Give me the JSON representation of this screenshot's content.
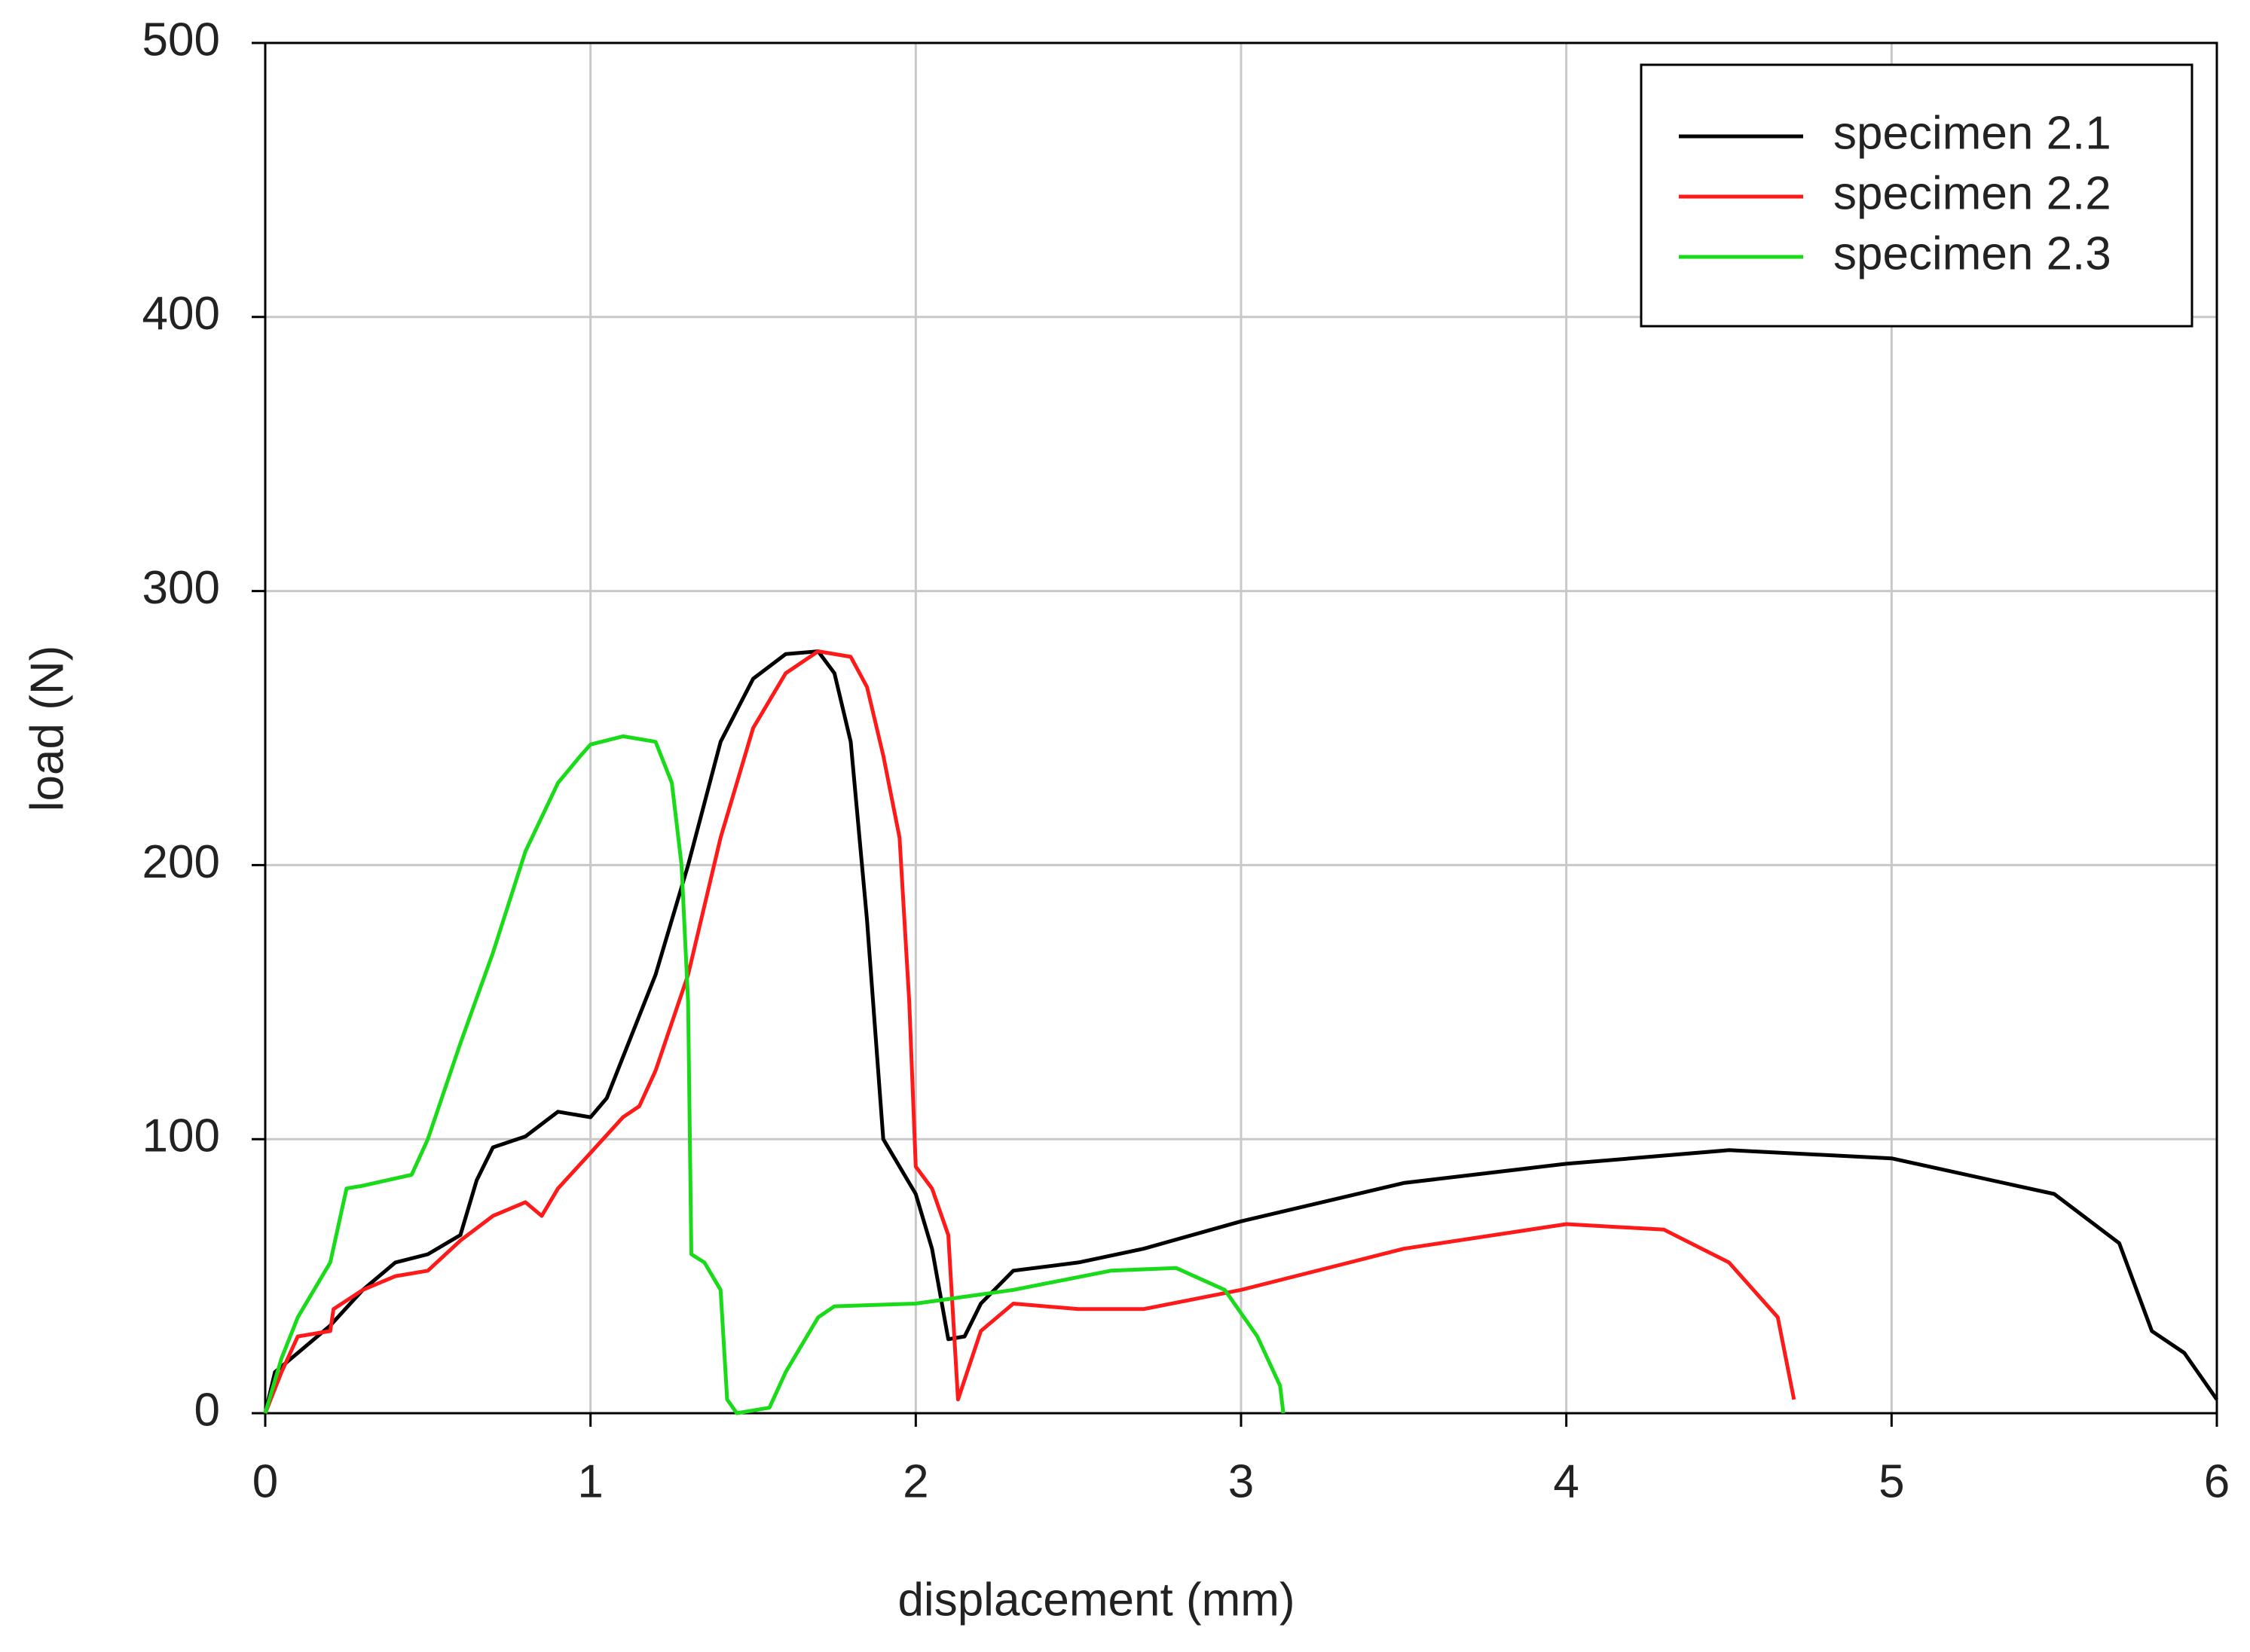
{
  "chart_data": {
    "type": "line",
    "x_label": "displacement (mm)",
    "y_label": "load (N)",
    "xlim": [
      0,
      6
    ],
    "ylim": [
      0,
      500
    ],
    "xticks": [
      0,
      1,
      2,
      3,
      4,
      5,
      6
    ],
    "yticks": [
      0,
      100,
      200,
      300,
      400,
      500
    ],
    "grid": true,
    "legend": "upper right",
    "series": [
      {
        "name": "specimen 2.1",
        "color": "#000000",
        "x": [
          0,
          0.03,
          0.1,
          0.2,
          0.3,
          0.4,
          0.5,
          0.6,
          0.65,
          0.7,
          0.8,
          0.9,
          1.0,
          1.05,
          1.1,
          1.2,
          1.3,
          1.4,
          1.5,
          1.6,
          1.7,
          1.75,
          1.8,
          1.85,
          1.9,
          1.95,
          2.0,
          2.05,
          2.1,
          2.15,
          2.2,
          2.3,
          2.5,
          2.7,
          3.0,
          3.5,
          4.0,
          4.5,
          5.0,
          5.5,
          5.7,
          5.8,
          5.9,
          6.0
        ],
        "values": [
          0,
          15,
          22,
          32,
          45,
          55,
          58,
          65,
          85,
          97,
          101,
          110,
          108,
          115,
          130,
          160,
          200,
          245,
          268,
          277,
          278,
          270,
          245,
          180,
          100,
          90,
          80,
          60,
          27,
          28,
          40,
          52,
          55,
          60,
          70,
          84,
          91,
          96,
          93,
          80,
          62,
          30,
          22,
          5
        ]
      },
      {
        "name": "specimen 2.2",
        "color": "#ff1a1a",
        "x": [
          0,
          0.05,
          0.1,
          0.2,
          0.21,
          0.3,
          0.4,
          0.5,
          0.6,
          0.7,
          0.8,
          0.85,
          0.9,
          1.0,
          1.1,
          1.15,
          1.2,
          1.3,
          1.4,
          1.5,
          1.6,
          1.7,
          1.8,
          1.85,
          1.9,
          1.95,
          1.98,
          2.0,
          2.05,
          2.1,
          2.13,
          2.2,
          2.3,
          2.5,
          2.7,
          3.0,
          3.5,
          4.0,
          4.3,
          4.5,
          4.65,
          4.7
        ],
        "values": [
          0,
          15,
          28,
          30,
          38,
          45,
          50,
          52,
          63,
          72,
          77,
          72,
          82,
          95,
          108,
          112,
          125,
          160,
          210,
          250,
          270,
          278,
          276,
          265,
          240,
          210,
          150,
          90,
          82,
          65,
          5,
          30,
          40,
          38,
          38,
          45,
          60,
          69,
          67,
          55,
          35,
          5
        ]
      },
      {
        "name": "specimen 2.3",
        "color": "#1adb1a",
        "x": [
          0,
          0.05,
          0.1,
          0.2,
          0.25,
          0.3,
          0.45,
          0.5,
          0.6,
          0.7,
          0.8,
          0.9,
          0.97,
          1.0,
          1.1,
          1.2,
          1.25,
          1.28,
          1.3,
          1.31,
          1.35,
          1.4,
          1.42,
          1.45,
          1.55,
          1.6,
          1.7,
          1.75,
          2.0,
          2.3,
          2.6,
          2.8,
          2.95,
          3.05,
          3.12,
          3.13
        ],
        "values": [
          0,
          20,
          35,
          55,
          82,
          83,
          87,
          100,
          135,
          168,
          205,
          230,
          240,
          244,
          247,
          245,
          230,
          200,
          150,
          58,
          55,
          45,
          5,
          0,
          2,
          15,
          35,
          39,
          40,
          45,
          52,
          53,
          45,
          28,
          10,
          0
        ]
      }
    ]
  }
}
